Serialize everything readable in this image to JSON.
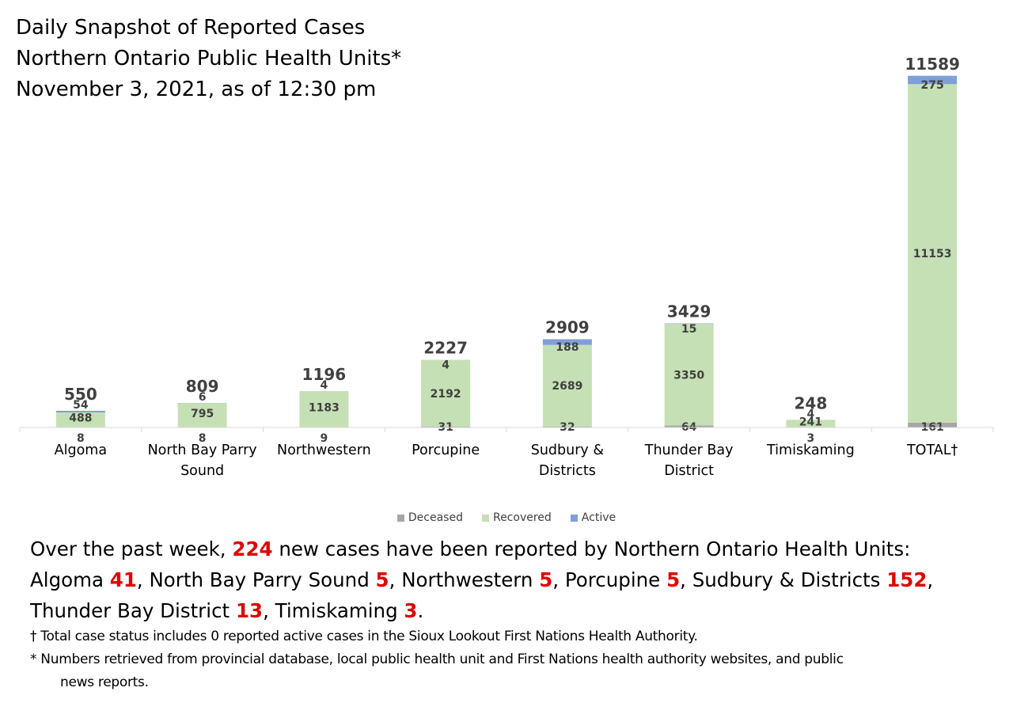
{
  "title": {
    "line1": "Daily Snapshot of Reported Cases",
    "line2": "Northern Ontario Public Health Units*",
    "line3": "November 3, 2021, as of 12:30 pm"
  },
  "colors": {
    "deceased": "#a6a6a6",
    "recovered": "#c5e0b4",
    "active": "#7f9fd9",
    "highlight": "#e00000"
  },
  "chart_data": {
    "type": "bar",
    "stacked": true,
    "categories": [
      "Algoma",
      "North Bay Parry Sound",
      "Northwestern",
      "Porcupine",
      "Sudbury & Districts",
      "Thunder Bay District",
      "Timiskaming",
      "TOTAL†"
    ],
    "category_lines": [
      [
        "Algoma"
      ],
      [
        "North Bay Parry",
        "Sound"
      ],
      [
        "Northwestern"
      ],
      [
        "Porcupine"
      ],
      [
        "Sudbury &",
        "Districts"
      ],
      [
        "Thunder Bay",
        "District"
      ],
      [
        "Timiskaming"
      ],
      [
        "TOTAL†"
      ]
    ],
    "series": [
      {
        "name": "Deceased",
        "values": [
          8,
          8,
          9,
          31,
          32,
          64,
          3,
          161
        ]
      },
      {
        "name": "Recovered",
        "values": [
          488,
          795,
          1183,
          2192,
          2689,
          3350,
          241,
          11153
        ]
      },
      {
        "name": "Active",
        "values": [
          54,
          6,
          4,
          4,
          188,
          15,
          4,
          275
        ]
      }
    ],
    "totals": [
      550,
      809,
      1196,
      2227,
      2909,
      3429,
      248,
      11589
    ],
    "ylim": [
      0,
      12000
    ],
    "legend_position": "bottom",
    "grid": false
  },
  "summary": {
    "line1_pre": "Over the past week, ",
    "new_cases": "224",
    "line1_post": " new cases have been reported by Northern Ontario Health Units:",
    "items": [
      {
        "pre": "",
        "name": "Algoma",
        "value": "41",
        "sep": ", "
      },
      {
        "pre": "",
        "name": "North Bay Parry Sound",
        "value": "5",
        "sep": ", "
      },
      {
        "pre": "",
        "name": "Northwestern",
        "value": "5",
        "sep": ", "
      },
      {
        "pre": "",
        "name": "Porcupine",
        "value": "5",
        "sep": ", "
      },
      {
        "pre": "",
        "name": "Sudbury & Districts",
        "value": "152",
        "sep": ","
      },
      {
        "pre": "",
        "name": "Thunder Bay District",
        "value": "13",
        "sep": ", "
      },
      {
        "pre": "",
        "name": "Timiskaming",
        "value": "3",
        "sep": "."
      }
    ]
  },
  "footnotes": {
    "dagger": "† Total case status includes 0 reported active cases in the Sioux Lookout First Nations Health Authority.",
    "star_line1": "* Numbers retrieved from provincial database, local public health unit and First Nations health authority websites, and public",
    "star_line2": "news reports."
  }
}
